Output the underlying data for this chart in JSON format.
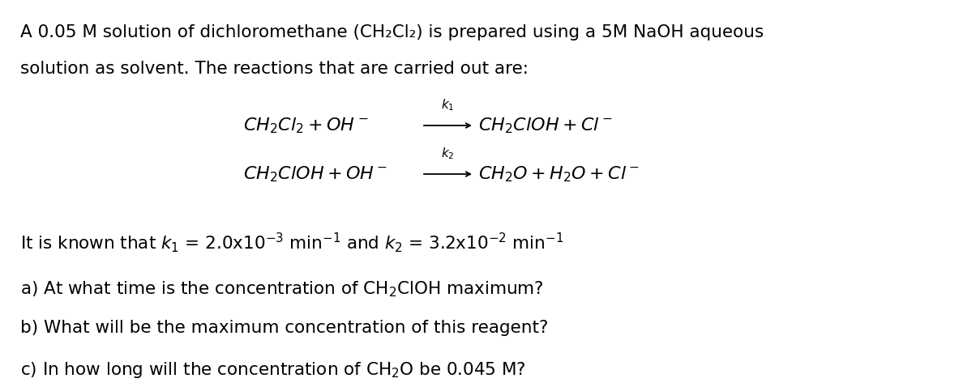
{
  "background_color": "#ffffff",
  "figsize": [
    11.88,
    4.78
  ],
  "dpi": 100,
  "text_color": "#000000",
  "k_color": "#000000",
  "font_size_body": 15.5,
  "font_size_rxn": 16,
  "font_size_k": 11,
  "body_font": "DejaVu Sans",
  "lines": [
    "A 0.05 M solution of dichloromethane (CH₂Cl₂) is prepared using a 5M NaOH aqueous",
    "solution as solvent. The reactions that are carried out are:"
  ],
  "rxn1_left": "$CH_2Cl_2 + OH^-$",
  "rxn1_k": "$k_1$",
  "rxn1_right": "$CH_2ClOH + Cl^-$",
  "rxn2_left": "$CH_2ClOH + OH^-$",
  "rxn2_k": "$k_2$",
  "rxn2_right": "$CH_2O + H_2O + Cl^-$",
  "kinetics_pre": "It is known that ",
  "kinetics_k1": "$k_1$",
  "kinetics_mid1": " = 2.0x10",
  "kinetics_exp1": "$^{-3}$",
  "kinetics_mid2": " min",
  "kinetics_exp2": "$^{-1}$",
  "kinetics_mid3": " and ",
  "kinetics_k2": "$k_2$",
  "kinetics_mid4": " = 3.2x10",
  "kinetics_exp3": "$^{-2}$",
  "kinetics_mid5": " min",
  "kinetics_exp4": "$^{-1}$",
  "qa": "a) At what time is the concentration of CH₂ClOH maximum?",
  "qb": "b) What will be the maximum concentration of this reagent?",
  "qc": "c) In how long will the concentration of CH₂O be 0.045 M?"
}
